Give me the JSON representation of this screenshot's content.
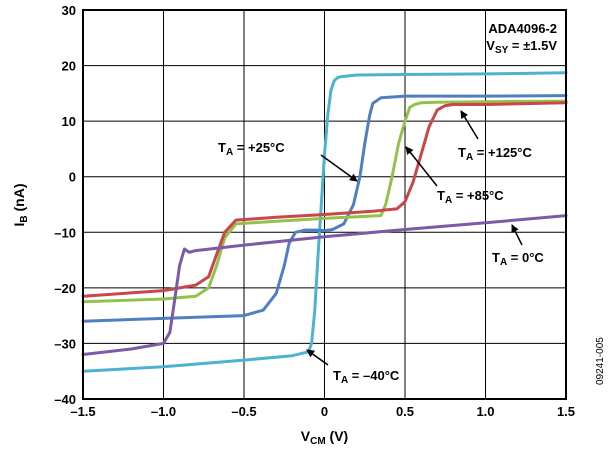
{
  "chart_data": {
    "type": "line",
    "title": "",
    "xlabel_main": "V",
    "xlabel_sub": "CM",
    "xlabel_unit": " (V)",
    "ylabel_main": "I",
    "ylabel_sub": "B",
    "ylabel_unit": " (nA)",
    "xlim": [
      -1.5,
      1.5
    ],
    "ylim": [
      -40,
      30
    ],
    "grid": true,
    "x_ticks": [
      -1.5,
      -1.0,
      -0.5,
      0,
      0.5,
      1.0,
      1.5
    ],
    "x_tick_labels": [
      "–1.5",
      "–1.0",
      "–0.5",
      "0",
      "0.5",
      "1.0",
      "1.5"
    ],
    "y_ticks": [
      -40,
      -30,
      -20,
      -10,
      0,
      10,
      20,
      30
    ],
    "y_tick_labels": [
      "–40",
      "–30",
      "–20",
      "–10",
      "0",
      "10",
      "20",
      "30"
    ],
    "device_label": "ADA4096-2",
    "supply_label_main": "V",
    "supply_label_sub": "SY",
    "supply_label_value": " = ±1.5V",
    "figure_id": "09241-005",
    "series": [
      {
        "label_sub": "A",
        "label_value": " = –40°C",
        "color": "#4bb3d1",
        "x": [
          -1.5,
          -1.0,
          -0.5,
          -0.2,
          -0.1,
          -0.08,
          -0.06,
          -0.04,
          -0.02,
          0,
          0.02,
          0.04,
          0.06,
          0.08,
          0.1,
          0.2,
          0.5,
          1.0,
          1.5
        ],
        "y": [
          -35,
          -34.2,
          -33,
          -32.2,
          -31.5,
          -30,
          -24,
          -14,
          -5,
          4,
          11,
          15.5,
          17.3,
          17.8,
          18,
          18.3,
          18.4,
          18.5,
          18.7
        ]
      },
      {
        "label_sub": "A",
        "label_value": " = +25°C",
        "color": "#4f7fc0",
        "x": [
          -1.5,
          -1.0,
          -0.5,
          -0.38,
          -0.3,
          -0.25,
          -0.22,
          -0.18,
          -0.12,
          -0.05,
          0,
          0.05,
          0.12,
          0.18,
          0.22,
          0.25,
          0.28,
          0.3,
          0.35,
          0.5,
          1.0,
          1.5
        ],
        "y": [
          -26,
          -25.5,
          -25,
          -24,
          -21,
          -16,
          -12,
          -10,
          -9.6,
          -9.6,
          -9.7,
          -9.5,
          -8.5,
          -5,
          0,
          6,
          11,
          13.2,
          14.2,
          14.5,
          14.5,
          14.6
        ]
      },
      {
        "label_sub": "A",
        "label_value": " = +85°C",
        "color": "#93c24a",
        "x": [
          -1.5,
          -1.0,
          -0.8,
          -0.72,
          -0.67,
          -0.62,
          -0.55,
          -0.3,
          0,
          0.2,
          0.35,
          0.38,
          0.42,
          0.46,
          0.5,
          0.53,
          0.56,
          0.6,
          0.7,
          1.0,
          1.5
        ],
        "y": [
          -22.5,
          -22,
          -21.5,
          -20,
          -16,
          -11,
          -8.5,
          -8,
          -7.5,
          -7.2,
          -7,
          -5,
          0,
          6,
          10,
          12.5,
          13,
          13.3,
          13.4,
          13.5,
          13.6
        ]
      },
      {
        "label_sub": "A",
        "label_value": " = +125°C",
        "color": "#c9464a",
        "x": [
          -1.5,
          -1.0,
          -0.8,
          -0.72,
          -0.67,
          -0.62,
          -0.55,
          -0.3,
          0,
          0.3,
          0.45,
          0.5,
          0.55,
          0.6,
          0.65,
          0.7,
          0.75,
          0.8,
          1.0,
          1.5
        ],
        "y": [
          -21.5,
          -20.5,
          -19.5,
          -18,
          -14,
          -10,
          -7.8,
          -7.3,
          -6.8,
          -6.2,
          -5.8,
          -4.5,
          -1,
          4,
          9,
          12,
          12.8,
          13,
          13,
          13.3
        ]
      },
      {
        "label_sub": "A",
        "label_value": " = 0°C",
        "color": "#7d5aa6",
        "x": [
          -1.5,
          -1.2,
          -1.0,
          -0.96,
          -0.93,
          -0.9,
          -0.87,
          -0.84,
          -0.8,
          -0.5,
          0,
          0.5,
          1.0,
          1.5
        ],
        "y": [
          -32,
          -31,
          -30,
          -28,
          -22,
          -16,
          -13,
          -13.6,
          -13.3,
          -12.3,
          -10.8,
          -9.5,
          -8.3,
          -7
        ]
      }
    ]
  }
}
